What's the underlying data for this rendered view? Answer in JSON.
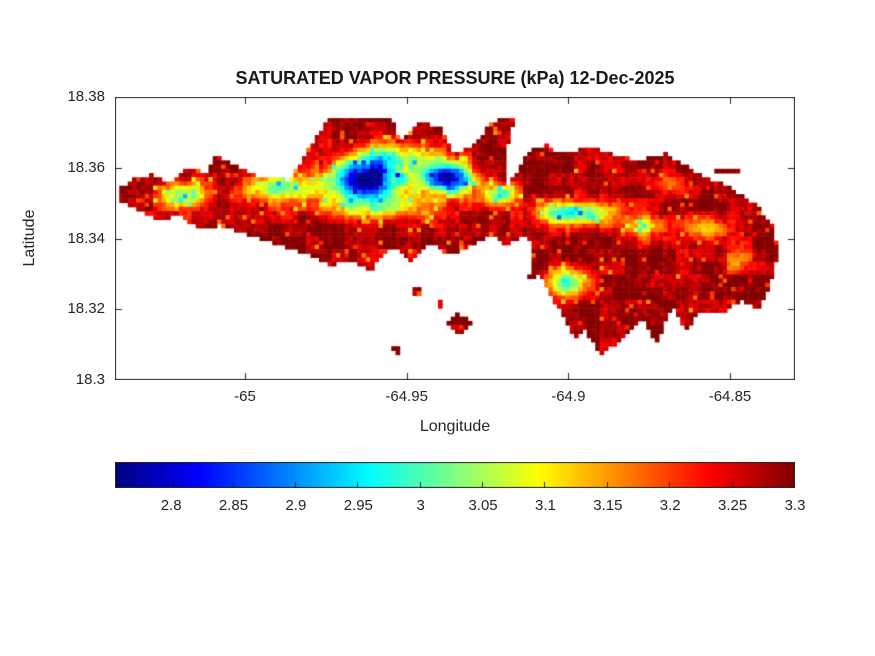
{
  "figure": {
    "background": "#ffffff",
    "axis_color": "#262626"
  },
  "chart_data": {
    "type": "heatmap",
    "title": "SATURATED VAPOR PRESSURE (kPa) 12-Dec-2025",
    "xlabel": "Longitude",
    "ylabel": "Latitude",
    "xlim": [
      -65.0402,
      -64.8299
    ],
    "ylim": [
      18.3,
      18.38
    ],
    "xticks": [
      -65,
      -64.95,
      -64.9,
      -64.85
    ],
    "xtick_labels": [
      "-65",
      "-64.95",
      "-64.9",
      "-64.85"
    ],
    "yticks": [
      18.38,
      18.36,
      18.34,
      18.32,
      18.3
    ],
    "ytick_labels": [
      "18.38",
      "18.36",
      "18.34",
      "18.32",
      "18.3"
    ],
    "colormap": "jet",
    "value_range": [
      2.755,
      3.3
    ],
    "colorbar_ticks": [
      2.8,
      2.85,
      2.9,
      2.95,
      3,
      3.05,
      3.1,
      3.15,
      3.2,
      3.25,
      3.3
    ],
    "colorbar_tick_labels": [
      "2.8",
      "2.85",
      "2.9",
      "2.95",
      "3",
      "3.05",
      "3.1",
      "3.15",
      "3.2",
      "3.25",
      "3.3"
    ],
    "grid": false,
    "base_value": 3.285,
    "cool_spots": [
      {
        "lon": -64.963,
        "lat": 18.3565,
        "rlon": 0.0115,
        "rlat": 0.005,
        "amp": 0.55
      },
      {
        "lon": -64.9375,
        "lat": 18.357,
        "rlon": 0.008,
        "rlat": 0.0045,
        "amp": 0.52
      },
      {
        "lon": -64.955,
        "lat": 18.363,
        "rlon": 0.014,
        "rlat": 0.0042,
        "amp": 0.26
      },
      {
        "lon": -64.96,
        "lat": 18.349,
        "rlon": 0.02,
        "rlat": 0.0036,
        "amp": 0.22
      },
      {
        "lon": -64.99,
        "lat": 18.3545,
        "rlon": 0.011,
        "rlat": 0.0038,
        "amp": 0.26
      },
      {
        "lon": -65.019,
        "lat": 18.3525,
        "rlon": 0.007,
        "rlat": 0.0038,
        "amp": 0.3
      },
      {
        "lon": -64.9215,
        "lat": 18.3525,
        "rlon": 0.006,
        "rlat": 0.003,
        "amp": 0.3
      },
      {
        "lon": -64.898,
        "lat": 18.347,
        "rlon": 0.012,
        "rlat": 0.0034,
        "amp": 0.33
      },
      {
        "lon": -64.876,
        "lat": 18.3435,
        "rlon": 0.0075,
        "rlat": 0.003,
        "amp": 0.18
      },
      {
        "lon": -64.901,
        "lat": 18.3275,
        "rlon": 0.0062,
        "rlat": 0.0042,
        "amp": 0.31
      },
      {
        "lon": -64.858,
        "lat": 18.343,
        "rlon": 0.0075,
        "rlat": 0.0038,
        "amp": 0.16
      },
      {
        "lon": -64.869,
        "lat": 18.356,
        "rlon": 0.0065,
        "rlat": 0.0028,
        "amp": 0.13
      },
      {
        "lon": -64.848,
        "lat": 18.333,
        "rlon": 0.006,
        "rlat": 0.0035,
        "amp": 0.12
      }
    ],
    "island_outline": [
      [
        -65.0386,
        18.3509
      ],
      [
        -65.039,
        18.354
      ],
      [
        -65.033,
        18.3575
      ],
      [
        -65.029,
        18.358
      ],
      [
        -65.023,
        18.3555
      ],
      [
        -65.018,
        18.36
      ],
      [
        -65.012,
        18.3585
      ],
      [
        -65.009,
        18.3636
      ],
      [
        -65.003,
        18.361
      ],
      [
        -64.998,
        18.358
      ],
      [
        -64.986,
        18.3565
      ],
      [
        -64.98,
        18.366
      ],
      [
        -64.974,
        18.374
      ],
      [
        -64.955,
        18.3745
      ],
      [
        -64.952,
        18.368
      ],
      [
        -64.947,
        18.3725
      ],
      [
        -64.94,
        18.372
      ],
      [
        -64.935,
        18.3636
      ],
      [
        -64.929,
        18.367
      ],
      [
        -64.924,
        18.3725
      ],
      [
        -64.921,
        18.374
      ],
      [
        -64.9165,
        18.374
      ],
      [
        -64.919,
        18.365
      ],
      [
        -64.9196,
        18.3537
      ],
      [
        -64.912,
        18.365
      ],
      [
        -64.906,
        18.3665
      ],
      [
        -64.9025,
        18.3636
      ],
      [
        -64.896,
        18.3655
      ],
      [
        -64.89,
        18.365
      ],
      [
        -64.879,
        18.362
      ],
      [
        -64.87,
        18.364
      ],
      [
        -64.859,
        18.358
      ],
      [
        -64.8508,
        18.3548
      ],
      [
        -64.842,
        18.3495
      ],
      [
        -64.837,
        18.344
      ],
      [
        -64.835,
        18.3368
      ],
      [
        -64.838,
        18.3254
      ],
      [
        -64.841,
        18.3198
      ],
      [
        -64.847,
        18.3226
      ],
      [
        -64.852,
        18.3184
      ],
      [
        -64.859,
        18.3198
      ],
      [
        -64.8637,
        18.314
      ],
      [
        -64.868,
        18.321
      ],
      [
        -64.873,
        18.3099
      ],
      [
        -64.877,
        18.318
      ],
      [
        -64.884,
        18.3113
      ],
      [
        -64.89,
        18.307
      ],
      [
        -64.895,
        18.314
      ],
      [
        -64.898,
        18.312
      ],
      [
        -64.9025,
        18.3198
      ],
      [
        -64.906,
        18.324
      ],
      [
        -64.9086,
        18.33
      ],
      [
        -64.9125,
        18.328
      ],
      [
        -64.911,
        18.336
      ],
      [
        -64.9125,
        18.341
      ],
      [
        -64.9196,
        18.338
      ],
      [
        -64.924,
        18.341
      ],
      [
        -64.93,
        18.338
      ],
      [
        -64.9365,
        18.3353
      ],
      [
        -64.943,
        18.339
      ],
      [
        -64.949,
        18.3339
      ],
      [
        -64.955,
        18.338
      ],
      [
        -64.961,
        18.331
      ],
      [
        -64.967,
        18.334
      ],
      [
        -64.9735,
        18.3325
      ],
      [
        -64.9796,
        18.3353
      ],
      [
        -64.989,
        18.338
      ],
      [
        -64.9985,
        18.341
      ],
      [
        -65.0077,
        18.3438
      ],
      [
        -65.0139,
        18.3424
      ],
      [
        -65.02,
        18.3466
      ],
      [
        -65.0263,
        18.3452
      ],
      [
        -65.0324,
        18.348
      ]
    ],
    "islets": [
      {
        "center": [
          -64.8508,
          18.3591
        ],
        "rlon": 0.004,
        "rlat": 0.0013
      },
      {
        "center": [
          -64.947,
          18.325
        ],
        "rlon": 0.0022,
        "rlat": 0.0018
      },
      {
        "center": [
          -64.934,
          18.316
        ],
        "rlon": 0.0042,
        "rlat": 0.003
      },
      {
        "center": [
          -64.953,
          18.3085
        ],
        "rlon": 0.002,
        "rlat": 0.0016
      },
      {
        "center": [
          -64.9395,
          18.3215
        ],
        "rlon": 0.0018,
        "rlat": 0.0014
      }
    ]
  }
}
